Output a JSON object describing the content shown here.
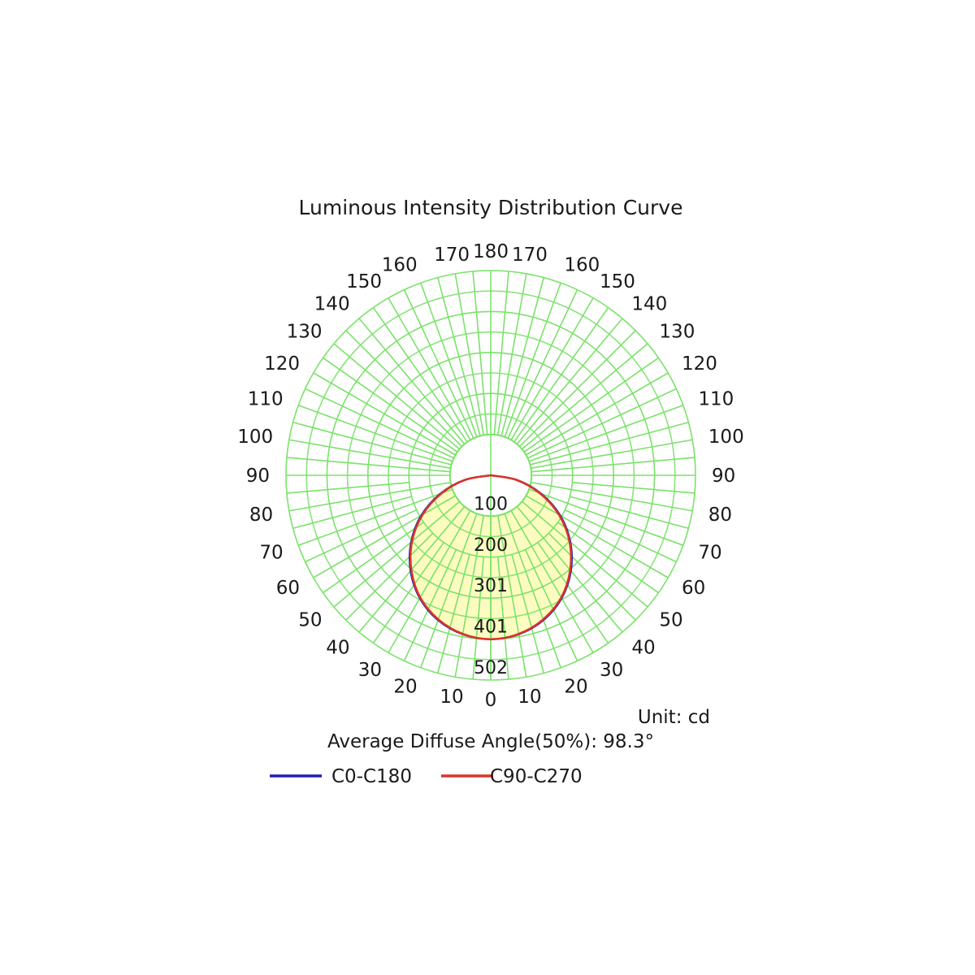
{
  "chart_data": {
    "type": "polar",
    "title": "Luminous Intensity Distribution Curve",
    "unit_label": "Unit: cd",
    "info_text": "Average Diffuse Angle(50%): 98.3°",
    "r_max": 502,
    "ring_labels": [
      "100",
      "200",
      "301",
      "401",
      "502"
    ],
    "ring_values": [
      100.4,
      200.8,
      301.2,
      401.6,
      502
    ],
    "angle_labels_left": [
      "0",
      "10",
      "20",
      "30",
      "40",
      "50",
      "60",
      "70",
      "80",
      "90",
      "100",
      "110",
      "120",
      "130",
      "140",
      "150",
      "160",
      "170",
      "180"
    ],
    "angle_labels_right": [
      "10",
      "20",
      "30",
      "40",
      "50",
      "60",
      "70",
      "80",
      "90",
      "100",
      "110",
      "120",
      "130",
      "140",
      "150",
      "160",
      "170"
    ],
    "angle_step_deg": 10,
    "grid_color": "#7be26a",
    "fill_color": "#fdfcc0",
    "series": [
      {
        "name": "C0-C180",
        "color": "#1f1fb8",
        "angles": [
          0,
          10,
          20,
          30,
          40,
          50,
          60,
          70,
          80,
          90
        ],
        "values": [
          402,
          396,
          378,
          348,
          306,
          255,
          197,
          132,
          66,
          0
        ]
      },
      {
        "name": "C90-C270",
        "color": "#d8352a",
        "angles": [
          0,
          10,
          20,
          30,
          40,
          50,
          60,
          70,
          80,
          90
        ],
        "values": [
          402,
          395,
          376,
          346,
          303,
          252,
          193,
          128,
          63,
          0
        ]
      }
    ]
  }
}
